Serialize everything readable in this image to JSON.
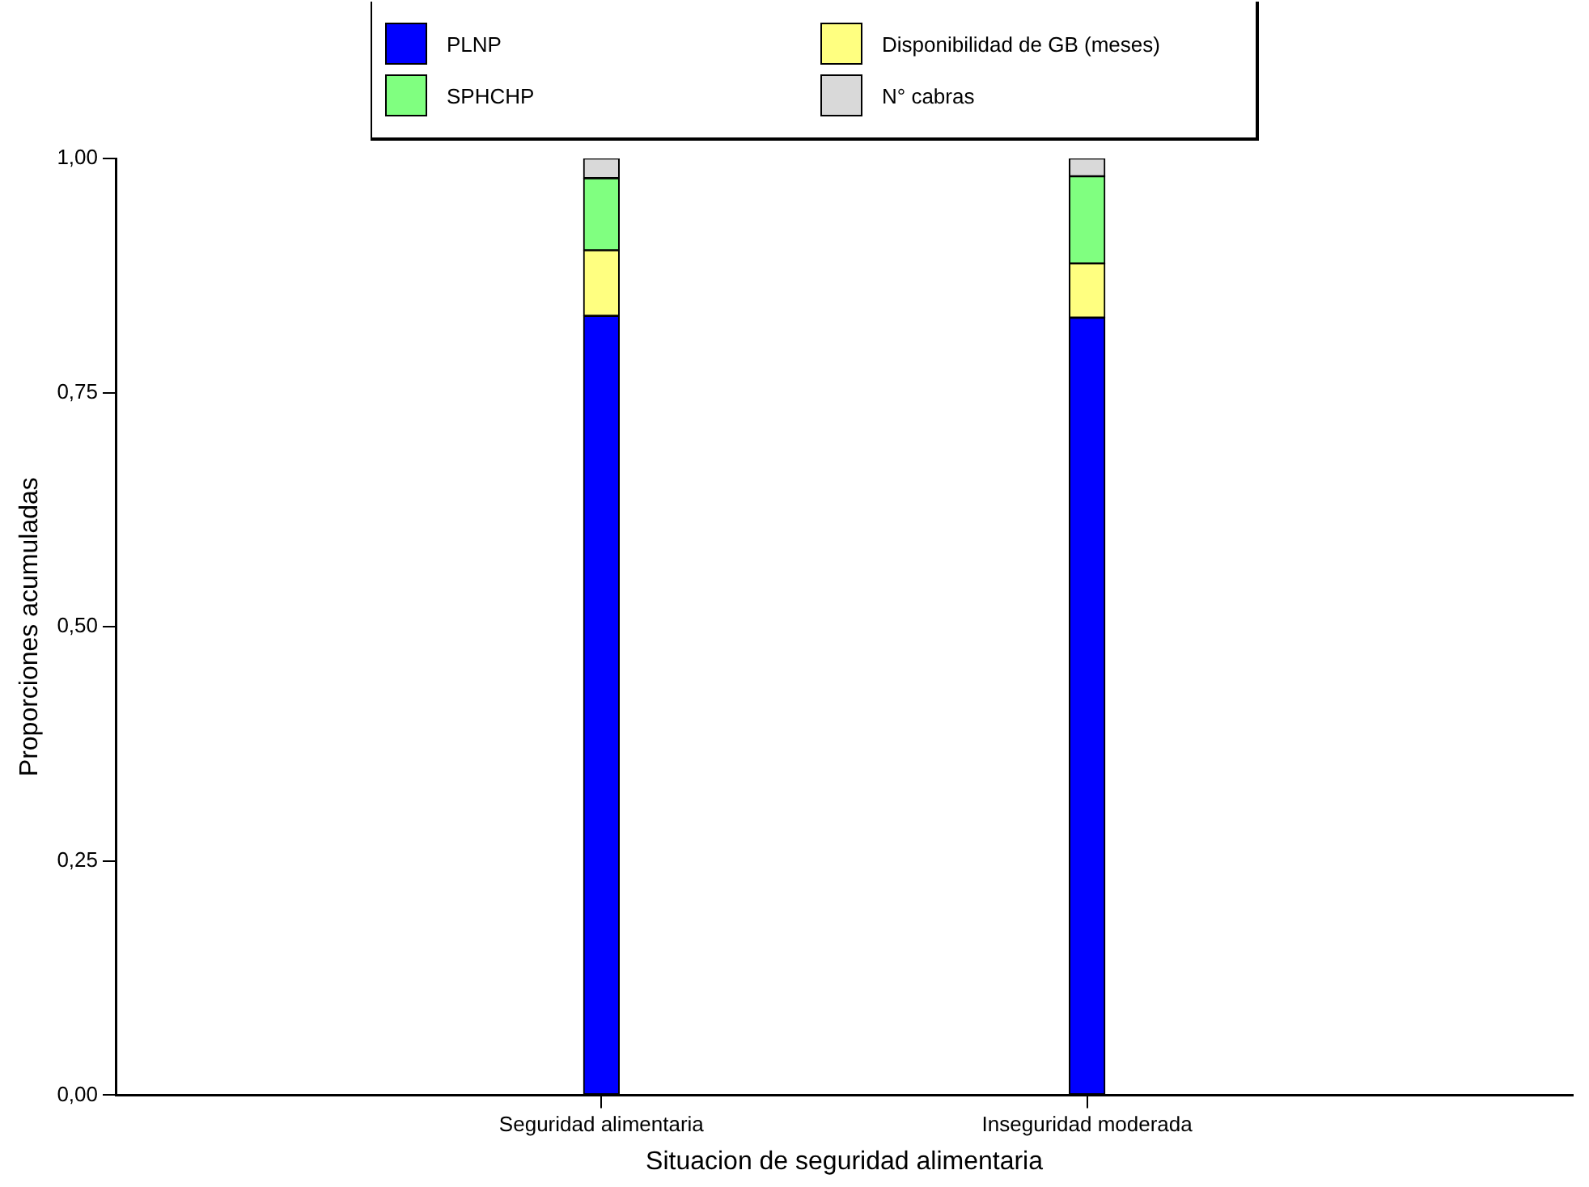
{
  "chart_data": {
    "type": "bar",
    "stacked": true,
    "xlabel": "Situacion de seguridad alimentaria",
    "ylabel": "Proporciones acumuladas",
    "categories": [
      "Seguridad alimentaria",
      "Inseguridad moderada"
    ],
    "series": [
      {
        "name": "PLNP",
        "color": "#0000ff",
        "values": [
          0.832,
          0.83
        ]
      },
      {
        "name": "Disponibilidad de GB (meses)",
        "color": "#ffff80",
        "values": [
          0.07,
          0.058
        ]
      },
      {
        "name": "SPHCHP",
        "color": "#80ff80",
        "values": [
          0.077,
          0.093
        ]
      },
      {
        "name": "N° cabras",
        "color": "#d9d9d9",
        "values": [
          0.021,
          0.019
        ]
      }
    ],
    "ylim": [
      0,
      1
    ],
    "yticks": [
      {
        "value": 0,
        "label": "0,00"
      },
      {
        "value": 0.25,
        "label": "0,25"
      },
      {
        "value": 0.5,
        "label": "0,50"
      },
      {
        "value": 0.75,
        "label": "0,75"
      },
      {
        "value": 1,
        "label": "1,00"
      }
    ],
    "grid": false,
    "legend": "top"
  }
}
